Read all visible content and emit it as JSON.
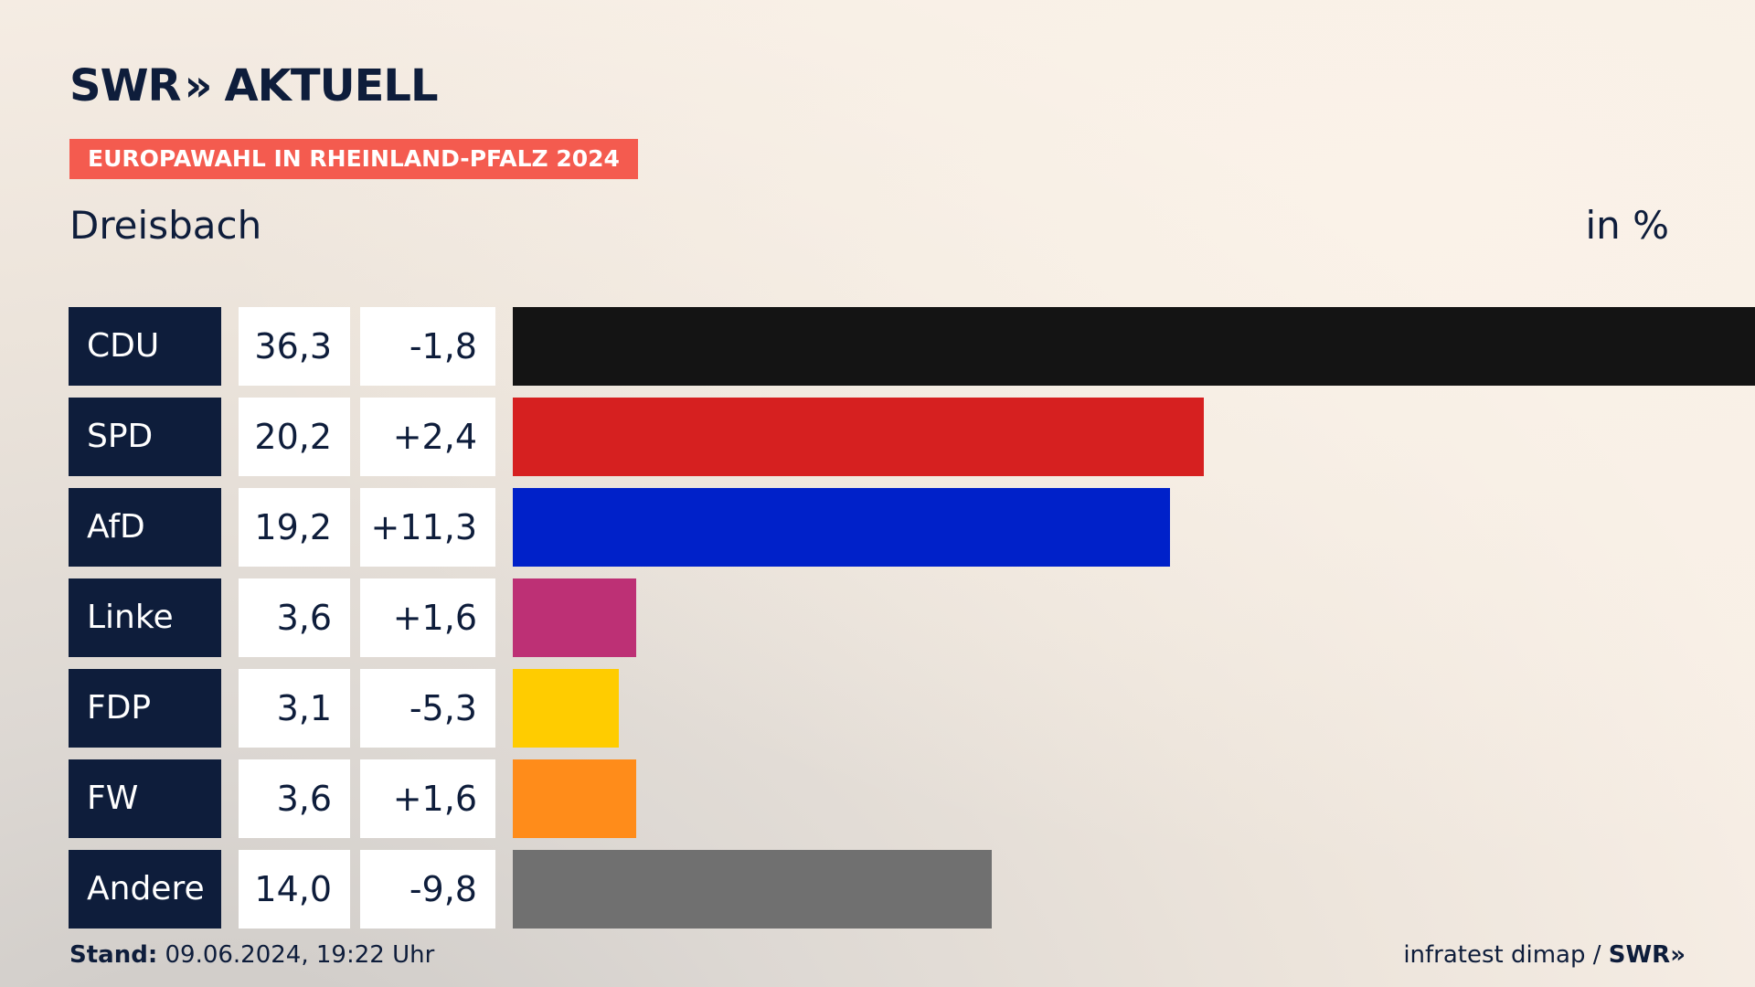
{
  "header": {
    "logo_text": "SWR",
    "logo_chevron": "»",
    "logo_suffix": "AKTUELL",
    "banner": "EUROPAWAHL IN RHEINLAND-PFALZ 2024",
    "location": "Dreisbach",
    "unit": "in %"
  },
  "chart_data": {
    "type": "bar",
    "orientation": "horizontal",
    "title": "EUROPAWAHL IN RHEINLAND-PFALZ 2024",
    "subtitle": "Dreisbach",
    "unit": "in %",
    "categories": [
      "CDU",
      "SPD",
      "AfD",
      "Linke",
      "FDP",
      "FW",
      "Andere"
    ],
    "values": [
      36.3,
      20.2,
      19.2,
      3.6,
      3.1,
      3.6,
      14.0
    ],
    "value_labels": [
      "36,3",
      "20,2",
      "19,2",
      "3,6",
      "3,1",
      "3,6",
      "14,0"
    ],
    "changes": [
      -1.8,
      2.4,
      11.3,
      1.6,
      -5.3,
      1.6,
      -9.8
    ],
    "change_labels": [
      "-1,8",
      "+2,4",
      "+11,3",
      "+1,6",
      "-5,3",
      "+1,6",
      "-9,8"
    ],
    "colors": [
      "#141414",
      "#d62020",
      "#0021c9",
      "#bd3075",
      "#ffcc00",
      "#ff8c1a",
      "#707070"
    ],
    "xlim": [
      0,
      36.3
    ],
    "grid": false,
    "legend": "none"
  },
  "footer": {
    "stand_label": "Stand:",
    "stand_value": " 09.06.2024, 19:22 Uhr",
    "source": "infratest dimap / ",
    "source_logo": "SWR",
    "source_chevron": "»"
  }
}
